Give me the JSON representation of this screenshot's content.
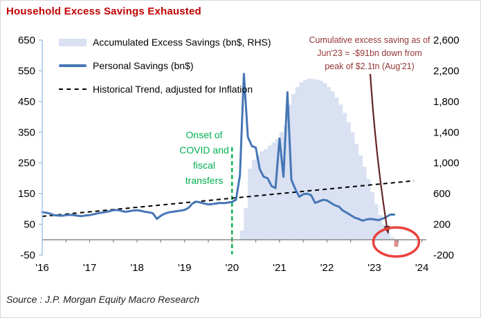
{
  "title": "Household Excess Savings Exhausted",
  "source": "Source : J.P. Morgan Equity Macro Research",
  "legend": [
    {
      "label": "Accumulated Excess Savings (bn$, RHS)",
      "swatch": "area"
    },
    {
      "label": "Personal Savings (bn$)",
      "swatch": "line"
    },
    {
      "label": "Historical Trend, adjusted for Inflation",
      "swatch": "dash"
    }
  ],
  "annotations": {
    "covid": {
      "lines": [
        "Onset of",
        "COVID and",
        "fiscal",
        "transfers"
      ],
      "color": "#00B050",
      "x_month": "2020-01"
    },
    "excess": {
      "lines": [
        "Cumulative excess saving as of",
        "Jun'23 = -$91bn down from",
        "peak of $2.1tn (Aug'21)"
      ],
      "color": "#953735"
    }
  },
  "colors": {
    "title": "#C00000",
    "area": "#D9E1F2",
    "line": "#4576B5",
    "negative_bar": "#D98F8F",
    "green": "#00B050",
    "arrow": "#632423",
    "circle": "#E8423C",
    "axis": "#808080",
    "spine": "#9DC3E6",
    "trend": "#000000"
  },
  "chart_data": {
    "type": "combo: monthly bar (right axis) + line (left axis) + dashed trend",
    "title": "Household Excess Savings Exhausted",
    "grid": false,
    "legend_position": "top-left inside plot",
    "x_axis": {
      "unit": "year",
      "start_year": 2016,
      "labels": [
        "'16",
        "'17",
        "'18",
        "'19",
        "'20",
        "'21",
        "'22",
        "'23",
        "'24"
      ]
    },
    "left_axis": {
      "min": -50,
      "max": 650,
      "tick_values": [
        650,
        550,
        450,
        350,
        250,
        150,
        50,
        -50
      ],
      "tick_labels": [
        "650",
        "550",
        "450",
        "350",
        "250",
        "150",
        "50",
        "-50"
      ]
    },
    "right_axis": {
      "min": -200,
      "max": 2600,
      "tick_values": [
        2600,
        2200,
        1800,
        1400,
        1000,
        600,
        200,
        -200
      ],
      "tick_labels": [
        "2,600",
        "2,200",
        "1,800",
        "1,400",
        "1,000",
        "600",
        "200",
        "-200"
      ]
    },
    "series": [
      {
        "name": "Accumulated Excess Savings (bn$, RHS)",
        "type": "bar",
        "axis": "right",
        "start": "2020-03",
        "frequency": "monthly",
        "peak": {
          "month": "2021-08",
          "value": 2100
        },
        "last": {
          "month": "2023-06",
          "value": -91
        },
        "values": [
          120,
          410,
          925,
          1040,
          1100,
          1150,
          1180,
          1225,
          1270,
          1315,
          1400,
          1490,
          1760,
          1900,
          1990,
          2050,
          2080,
          2100,
          2095,
          2085,
          2070,
          2040,
          1990,
          1930,
          1850,
          1760,
          1650,
          1530,
          1400,
          1250,
          1100,
          950,
          790,
          620,
          460,
          320,
          200,
          100,
          30,
          -91
        ]
      },
      {
        "name": "Personal Savings (bn$)",
        "type": "line",
        "axis": "left",
        "start": "2016-01",
        "frequency": "monthly",
        "values": [
          90,
          88,
          85,
          80,
          79,
          78,
          80,
          81,
          80,
          78,
          77,
          79,
          80,
          83,
          86,
          88,
          90,
          93,
          96,
          97,
          94,
          91,
          93,
          95,
          96,
          94,
          91,
          89,
          86,
          68,
          78,
          85,
          89,
          91,
          93,
          95,
          97,
          104,
          118,
          124,
          121,
          118,
          115,
          116,
          118,
          120,
          119,
          121,
          123,
          130,
          210,
          540,
          335,
          305,
          300,
          230,
          205,
          200,
          175,
          168,
          330,
          205,
          480,
          195,
          165,
          140,
          148,
          150,
          145,
          120,
          125,
          130,
          128,
          120,
          112,
          108,
          95,
          88,
          80,
          72,
          68,
          62,
          66,
          68,
          66,
          64,
          68,
          74,
          82,
          82
        ]
      },
      {
        "name": "Historical Trend, adjusted for Inflation",
        "type": "trend",
        "axis": "left",
        "style": "dashed",
        "points": [
          [
            "2016-01",
            76
          ],
          [
            "2023-11",
            192
          ]
        ]
      }
    ]
  }
}
